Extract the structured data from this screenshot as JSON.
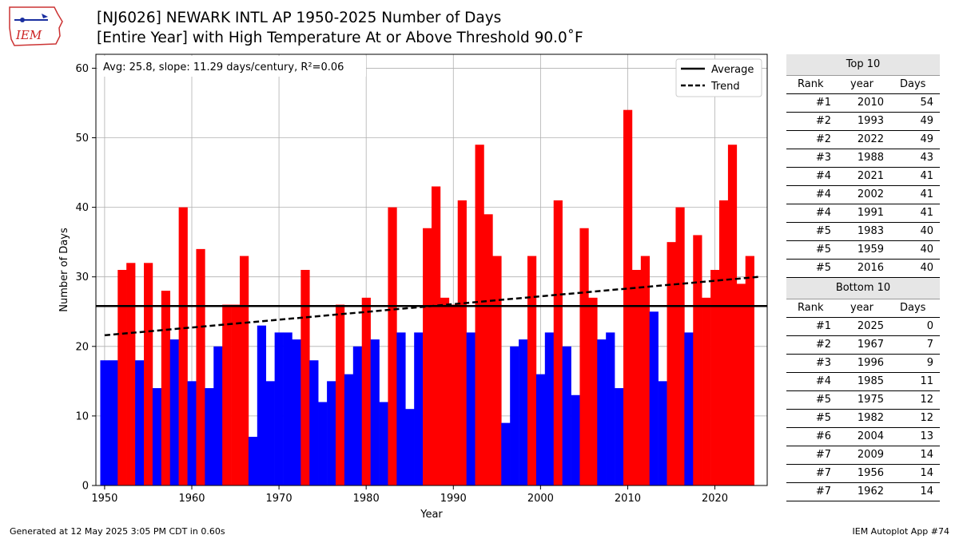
{
  "header": {
    "title_line1": "[NJ6026] NEWARK INTL AP 1950-2025 Number of Days",
    "title_line2": "[Entire Year] with High Temperature At or Above Threshold 90.0˚F",
    "logo_text": "IEM"
  },
  "footer": {
    "generated": "Generated at 12 May 2025 3:05 PM CDT in 0.60s",
    "app": "IEM Autoplot App #74"
  },
  "colors": {
    "above_average": "#ff0000",
    "below_average": "#0000ff",
    "average_line": "#000000",
    "trend_line": "#000000",
    "table_header_bg": "#e6e6e6"
  },
  "chart_data": {
    "type": "bar",
    "xlabel": "Year",
    "ylabel": "Number of Days",
    "xlim": [
      1949,
      2026
    ],
    "ylim": [
      0,
      62
    ],
    "xticks": [
      1950,
      1960,
      1970,
      1980,
      1990,
      2000,
      2010,
      2020
    ],
    "yticks": [
      0,
      10,
      20,
      30,
      40,
      50,
      60
    ],
    "grid": true,
    "annotation": "Avg: 25.8, slope: 11.29 days/century, R²=0.06",
    "legend": {
      "position": "top-right",
      "entries": [
        "Average",
        "Trend"
      ]
    },
    "average": 25.8,
    "trend": {
      "start": [
        1950,
        21.6
      ],
      "end": [
        2025,
        30.0
      ]
    },
    "x": [
      1950,
      1951,
      1952,
      1953,
      1954,
      1955,
      1956,
      1957,
      1958,
      1959,
      1960,
      1961,
      1962,
      1963,
      1964,
      1965,
      1966,
      1967,
      1968,
      1969,
      1970,
      1971,
      1972,
      1973,
      1974,
      1975,
      1976,
      1977,
      1978,
      1979,
      1980,
      1981,
      1982,
      1983,
      1984,
      1985,
      1986,
      1987,
      1988,
      1989,
      1990,
      1991,
      1992,
      1993,
      1994,
      1995,
      1996,
      1997,
      1998,
      1999,
      2000,
      2001,
      2002,
      2003,
      2004,
      2005,
      2006,
      2007,
      2008,
      2009,
      2010,
      2011,
      2012,
      2013,
      2014,
      2015,
      2016,
      2017,
      2018,
      2019,
      2020,
      2021,
      2022,
      2023,
      2024,
      2025
    ],
    "values": [
      18,
      18,
      31,
      32,
      18,
      32,
      14,
      28,
      21,
      40,
      15,
      34,
      14,
      20,
      26,
      26,
      33,
      7,
      23,
      15,
      22,
      22,
      21,
      31,
      18,
      12,
      15,
      26,
      16,
      20,
      27,
      21,
      12,
      40,
      22,
      11,
      22,
      37,
      43,
      27,
      26,
      41,
      22,
      49,
      39,
      33,
      9,
      20,
      21,
      33,
      16,
      22,
      41,
      20,
      13,
      37,
      27,
      21,
      22,
      14,
      54,
      31,
      33,
      25,
      15,
      35,
      40,
      22,
      36,
      27,
      31,
      41,
      49,
      29,
      33,
      0
    ]
  },
  "rank_table": {
    "top_title": "Top 10",
    "bottom_title": "Bottom 10",
    "col_rank": "Rank",
    "col_year": "year",
    "col_days": "Days",
    "top": [
      {
        "rank": "#1",
        "year": "2010",
        "days": "54"
      },
      {
        "rank": "#2",
        "year": "1993",
        "days": "49"
      },
      {
        "rank": "#2",
        "year": "2022",
        "days": "49"
      },
      {
        "rank": "#3",
        "year": "1988",
        "days": "43"
      },
      {
        "rank": "#4",
        "year": "2021",
        "days": "41"
      },
      {
        "rank": "#4",
        "year": "2002",
        "days": "41"
      },
      {
        "rank": "#4",
        "year": "1991",
        "days": "41"
      },
      {
        "rank": "#5",
        "year": "1983",
        "days": "40"
      },
      {
        "rank": "#5",
        "year": "1959",
        "days": "40"
      },
      {
        "rank": "#5",
        "year": "2016",
        "days": "40"
      }
    ],
    "bottom": [
      {
        "rank": "#1",
        "year": "2025",
        "days": "0"
      },
      {
        "rank": "#2",
        "year": "1967",
        "days": "7"
      },
      {
        "rank": "#3",
        "year": "1996",
        "days": "9"
      },
      {
        "rank": "#4",
        "year": "1985",
        "days": "11"
      },
      {
        "rank": "#5",
        "year": "1975",
        "days": "12"
      },
      {
        "rank": "#5",
        "year": "1982",
        "days": "12"
      },
      {
        "rank": "#6",
        "year": "2004",
        "days": "13"
      },
      {
        "rank": "#7",
        "year": "2009",
        "days": "14"
      },
      {
        "rank": "#7",
        "year": "1956",
        "days": "14"
      },
      {
        "rank": "#7",
        "year": "1962",
        "days": "14"
      }
    ]
  }
}
